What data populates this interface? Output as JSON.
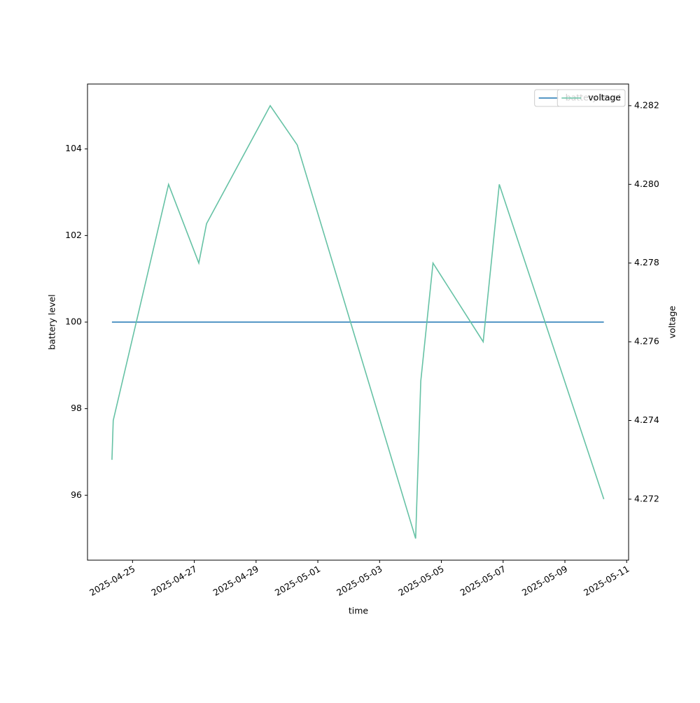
{
  "chart_data": {
    "type": "line",
    "x_label": "time",
    "y_label": "battery level",
    "y2_label": "voltage",
    "x": [
      "2025-04-24T08:00",
      "2025-04-24T09:00",
      "2025-04-26T04:00",
      "2025-04-27T03:30",
      "2025-04-27T09:30",
      "2025-04-29T11:00",
      "2025-04-30T08:00",
      "2025-05-04T04:00",
      "2025-05-04T08:00",
      "2025-05-04T17:30",
      "2025-05-06T08:30",
      "2025-05-06T21:00",
      "2025-05-10T06:15"
    ],
    "series": [
      {
        "name": "battery level",
        "color": "#1f77b4",
        "values": [
          100,
          100,
          100,
          100,
          100,
          100,
          100,
          100,
          100,
          100,
          100,
          100,
          100
        ]
      },
      {
        "name": "voltage",
        "color": "#66c2a5",
        "axis": "y2",
        "values": [
          4.273,
          4.274,
          4.28,
          4.278,
          4.279,
          4.282,
          4.281,
          4.271,
          4.275,
          4.278,
          4.276,
          4.28,
          4.272
        ]
      }
    ],
    "xlim": [
      "2025-04-23T13:00",
      "2025-05-11T01:30"
    ],
    "xticks": [
      "2025-04-25",
      "2025-04-27",
      "2025-04-29",
      "2025-05-01",
      "2025-05-03",
      "2025-05-05",
      "2025-05-07",
      "2025-05-09",
      "2025-05-11"
    ],
    "ylim": [
      94.5,
      105.5
    ],
    "yticks": [
      96,
      98,
      100,
      102,
      104
    ],
    "y2lim": [
      4.27045,
      4.28255
    ],
    "y2ticks": [
      4.272,
      4.274,
      4.276,
      4.278,
      {
        "value": 4.28,
        "label": "4.280"
      },
      4.282
    ],
    "legend": "upper right"
  }
}
